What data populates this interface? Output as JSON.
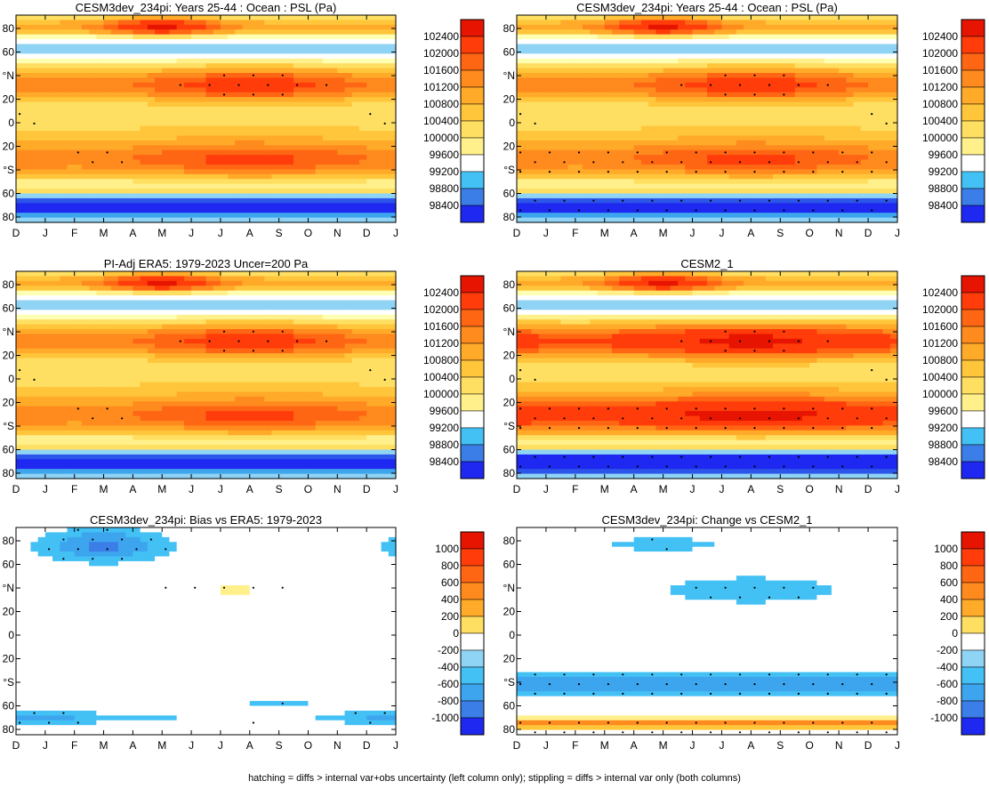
{
  "footer": "hatching = diffs > internal var+obs uncertainty (left column only); stippling = diffs > internal var only (both columns)",
  "chart_data": [
    {
      "type": "heatmap",
      "title": "CESM3dev_234pi: Years 25-44 : Ocean : PSL (Pa)",
      "x_ticks": [
        "D",
        "J",
        "F",
        "M",
        "A",
        "M",
        "J",
        "J",
        "A",
        "S",
        "O",
        "N",
        "D",
        "J"
      ],
      "y_ticks": [
        "80",
        "60",
        "°N",
        "20",
        "0",
        "20",
        "°S",
        "60",
        "80"
      ],
      "colorbar_labels": [
        "102400",
        "102000",
        "101600",
        "101200",
        "100800",
        "100400",
        "100000",
        "99600",
        "99200",
        "98800",
        "98400"
      ],
      "palette": "abs",
      "field": "f1"
    },
    {
      "type": "heatmap",
      "title": "CESM3dev_234pi: Years 25-44 : Ocean : PSL (Pa)",
      "x_ticks": [
        "D",
        "J",
        "F",
        "M",
        "A",
        "M",
        "J",
        "J",
        "A",
        "S",
        "O",
        "N",
        "D",
        "J"
      ],
      "y_ticks": [
        "80",
        "60",
        "°N",
        "20",
        "0",
        "20",
        "°S",
        "60",
        "80"
      ],
      "colorbar_labels": [
        "102400",
        "102000",
        "101600",
        "101200",
        "100800",
        "100400",
        "100000",
        "99600",
        "99200",
        "98800",
        "98400"
      ],
      "palette": "abs",
      "field": "f2"
    },
    {
      "type": "heatmap",
      "title": "PI-Adj ERA5: 1979-2023 Uncer=200 Pa",
      "x_ticks": [
        "D",
        "J",
        "F",
        "M",
        "A",
        "M",
        "J",
        "J",
        "A",
        "S",
        "O",
        "N",
        "D",
        "J"
      ],
      "y_ticks": [
        "80",
        "60",
        "°N",
        "20",
        "0",
        "20",
        "°S",
        "60",
        "80"
      ],
      "colorbar_labels": [
        "102400",
        "102000",
        "101600",
        "101200",
        "100800",
        "100400",
        "100000",
        "99600",
        "99200",
        "98800",
        "98400"
      ],
      "palette": "abs",
      "field": "f3"
    },
    {
      "type": "heatmap",
      "title": "CESM2_1",
      "x_ticks": [
        "D",
        "J",
        "F",
        "M",
        "A",
        "M",
        "J",
        "J",
        "A",
        "S",
        "O",
        "N",
        "D",
        "J"
      ],
      "y_ticks": [
        "80",
        "60",
        "°N",
        "20",
        "0",
        "20",
        "°S",
        "60",
        "80"
      ],
      "colorbar_labels": [
        "102400",
        "102000",
        "101600",
        "101200",
        "100800",
        "100400",
        "100000",
        "99600",
        "99200",
        "98800",
        "98400"
      ],
      "palette": "abs",
      "field": "f4"
    },
    {
      "type": "heatmap",
      "title": "CESM3dev_234pi: Bias vs ERA5: 1979-2023",
      "x_ticks": [
        "D",
        "J",
        "F",
        "M",
        "A",
        "M",
        "J",
        "J",
        "A",
        "S",
        "O",
        "N",
        "D",
        "J"
      ],
      "y_ticks": [
        "80",
        "60",
        "°N",
        "20",
        "0",
        "20",
        "°S",
        "60",
        "80"
      ],
      "colorbar_labels": [
        "1000",
        "800",
        "600",
        "400",
        "200",
        "0",
        "-200",
        "-400",
        "-600",
        "-800",
        "-1000"
      ],
      "palette": "diff",
      "field": "f5"
    },
    {
      "type": "heatmap",
      "title": "CESM3dev_234pi: Change vs CESM2_1",
      "x_ticks": [
        "D",
        "J",
        "F",
        "M",
        "A",
        "M",
        "J",
        "J",
        "A",
        "S",
        "O",
        "N",
        "D",
        "J"
      ],
      "y_ticks": [
        "80",
        "60",
        "°N",
        "20",
        "0",
        "20",
        "°S",
        "60",
        "80"
      ],
      "colorbar_labels": [
        "1000",
        "800",
        "600",
        "400",
        "200",
        "0",
        "-200",
        "-400",
        "-600",
        "-800",
        "-1000"
      ],
      "palette": "diff",
      "field": "f6"
    }
  ],
  "colors": {
    "abs": [
      "#1e28f0",
      "#2d55ea",
      "#3c7ee8",
      "#3da5ee",
      "#43c1f5",
      "#8fd3f5",
      "#ffffff",
      "#ffffb4",
      "#fff08c",
      "#ffdf62",
      "#ffc63c",
      "#ffaa28",
      "#ff8a1e",
      "#ff6614",
      "#ff3c0a",
      "#e61400"
    ],
    "diff": [
      "#1e28f0",
      "#2d55ea",
      "#3c7ee8",
      "#3da5ee",
      "#43c1f5",
      "#8fd3f5",
      "#ffffff",
      "#ffffb4",
      "#fff08c",
      "#ffdf62",
      "#ffc63c",
      "#ffaa28",
      "#ff8a1e",
      "#ff6614",
      "#ff3c0a",
      "#e61400"
    ]
  }
}
